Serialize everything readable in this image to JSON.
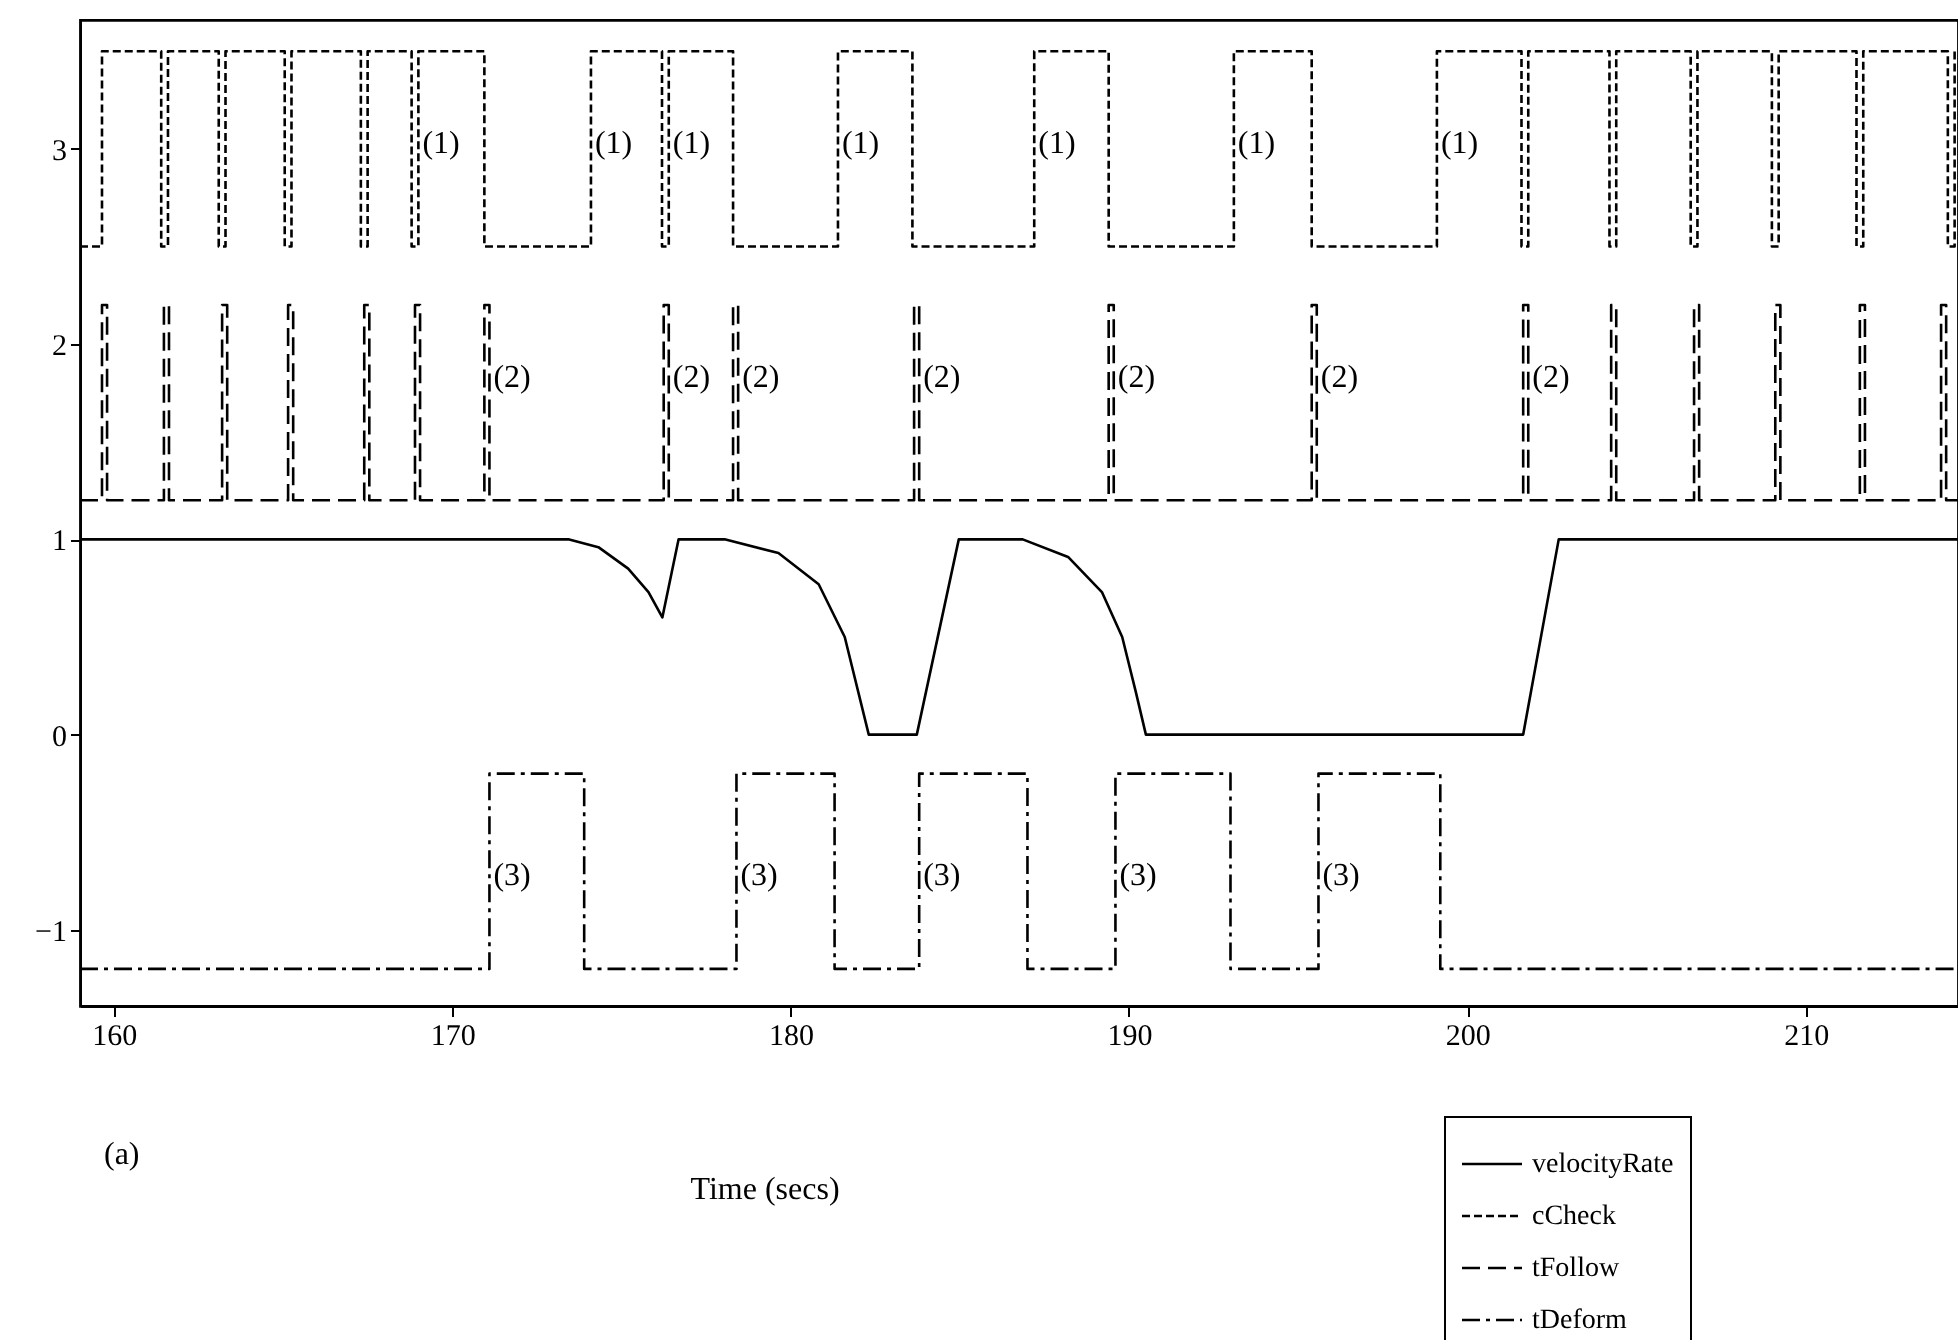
{
  "chart_data": {
    "type": "line",
    "xlabel": "Time (secs)",
    "xlim": [
      159,
      214.5
    ],
    "xticks": [
      160,
      170,
      180,
      190,
      200,
      210
    ],
    "ylim": [
      -1.39,
      3.66
    ],
    "yticks": [
      -1,
      0,
      1,
      2,
      3
    ],
    "grid": false,
    "legend": "bottom right",
    "series": [
      {
        "name": "velocityRate",
        "type": "line",
        "line_style": "solid",
        "color": "#000000",
        "x": [
          159,
          173.43,
          174.32,
          175.2,
          175.8,
          176.21,
          176.69,
          178.05,
          179.64,
          180.83,
          181.6,
          182.31,
          183.73,
          184.97,
          186.86,
          188.2,
          189.2,
          189.8,
          190.2,
          190.5,
          201.65,
          202.7,
          214.5
        ],
        "values": [
          1,
          1,
          0.96,
          0.85,
          0.73,
          0.6,
          1,
          1,
          0.93,
          0.77,
          0.5,
          0,
          0,
          1,
          1,
          0.91,
          0.73,
          0.5,
          0.22,
          0,
          0,
          1,
          1
        ]
      },
      {
        "name": "cCheck",
        "type": "step",
        "line_style": "dotted",
        "color": "#000000",
        "x": [
          159,
          159.65,
          161.4,
          161.6,
          163.1,
          163.3,
          165.05,
          165.25,
          167.3,
          167.5,
          168.8,
          169.0,
          170.95,
          174.1,
          176.2,
          176.4,
          178.3,
          181.4,
          183.6,
          187.2,
          189.4,
          193.1,
          195.4,
          199.1,
          201.6,
          201.8,
          204.2,
          204.4,
          206.6,
          206.8,
          209.0,
          209.2,
          211.5,
          211.7,
          214.2,
          214.4,
          214.5
        ],
        "values": [
          2.5,
          3.5,
          2.5,
          3.5,
          2.5,
          3.5,
          2.5,
          3.5,
          2.5,
          3.5,
          2.5,
          3.5,
          2.5,
          3.5,
          2.5,
          3.5,
          2.5,
          3.5,
          2.5,
          3.5,
          2.5,
          3.5,
          2.5,
          3.5,
          2.5,
          3.5,
          2.5,
          3.5,
          2.5,
          3.5,
          2.5,
          3.5,
          2.5,
          3.5,
          2.5,
          3.5,
          3.5
        ]
      },
      {
        "name": "tFollow",
        "type": "step",
        "line_style": "dashed",
        "color": "#000000",
        "x": [
          159,
          159.65,
          159.8,
          161.48,
          161.63,
          163.2,
          163.35,
          165.15,
          165.3,
          167.4,
          167.55,
          168.9,
          169.05,
          170.95,
          171.1,
          176.25,
          176.4,
          178.3,
          178.45,
          183.65,
          183.8,
          189.4,
          189.55,
          195.4,
          195.55,
          201.65,
          201.8,
          204.25,
          204.4,
          206.7,
          206.85,
          209.1,
          209.25,
          211.6,
          211.75,
          214.0,
          214.15,
          214.5
        ],
        "values": [
          1.2,
          2.2,
          1.2,
          2.2,
          1.2,
          2.2,
          1.2,
          2.2,
          1.2,
          2.2,
          1.2,
          2.2,
          1.2,
          2.2,
          1.2,
          2.2,
          1.2,
          2.2,
          1.2,
          2.2,
          1.2,
          2.2,
          1.2,
          2.2,
          1.2,
          2.2,
          1.2,
          2.2,
          1.2,
          2.2,
          1.2,
          2.2,
          1.2,
          2.2,
          1.2,
          2.2,
          1.2,
          1.2
        ]
      },
      {
        "name": "tDeform",
        "type": "step",
        "line_style": "dashdot",
        "color": "#000000",
        "x": [
          159,
          171.1,
          173.9,
          178.4,
          181.3,
          183.8,
          187.0,
          189.6,
          193.0,
          195.6,
          199.2,
          214.5
        ],
        "values": [
          -1.2,
          -0.2,
          -1.2,
          -0.2,
          -1.2,
          -0.2,
          -1.2,
          -0.2,
          -1.2,
          -0.2,
          -1.2,
          -1.2
        ]
      }
    ],
    "annotations": [
      {
        "text": "(1)",
        "x": 169.0,
        "y": 3.03
      },
      {
        "text": "(1)",
        "x": 174.1,
        "y": 3.03
      },
      {
        "text": "(1)",
        "x": 176.4,
        "y": 3.03
      },
      {
        "text": "(1)",
        "x": 181.4,
        "y": 3.03
      },
      {
        "text": "(1)",
        "x": 187.2,
        "y": 3.03
      },
      {
        "text": "(1)",
        "x": 193.1,
        "y": 3.03
      },
      {
        "text": "(1)",
        "x": 199.1,
        "y": 3.03
      },
      {
        "text": "(2)",
        "x": 171.1,
        "y": 1.83
      },
      {
        "text": "(2)",
        "x": 176.4,
        "y": 1.83
      },
      {
        "text": "(2)",
        "x": 178.45,
        "y": 1.83
      },
      {
        "text": "(2)",
        "x": 183.8,
        "y": 1.83
      },
      {
        "text": "(2)",
        "x": 189.55,
        "y": 1.83
      },
      {
        "text": "(2)",
        "x": 195.55,
        "y": 1.83
      },
      {
        "text": "(2)",
        "x": 201.8,
        "y": 1.83
      },
      {
        "text": "(3)",
        "x": 171.1,
        "y": -0.72
      },
      {
        "text": "(3)",
        "x": 178.4,
        "y": -0.72
      },
      {
        "text": "(3)",
        "x": 183.8,
        "y": -0.72
      },
      {
        "text": "(3)",
        "x": 189.6,
        "y": -0.72
      },
      {
        "text": "(3)",
        "x": 195.6,
        "y": -0.72
      },
      "(a)"
    ]
  }
}
